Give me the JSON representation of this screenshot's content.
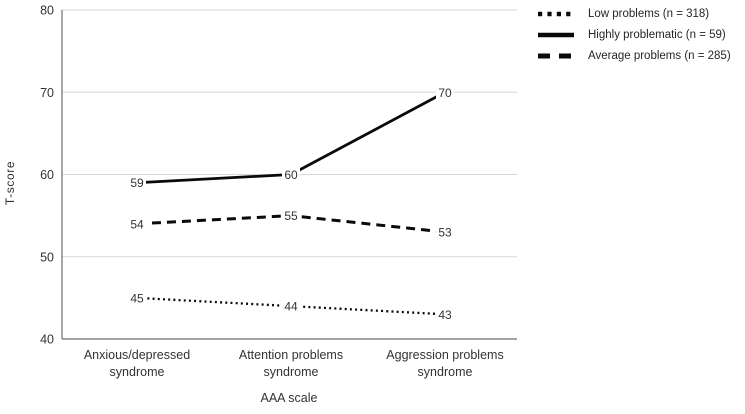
{
  "chart_data": {
    "type": "line",
    "title": "",
    "xlabel": "AAA scale",
    "ylabel": "T-score",
    "ylim": [
      40,
      80
    ],
    "yticks": [
      40,
      50,
      60,
      70,
      80
    ],
    "grid": "horizontal",
    "legend_position": "top-right-outside",
    "categories": [
      "Anxious/depressed\nsyndrome",
      "Attention problems\nsyndrome",
      "Aggression problems\nsyndrome"
    ],
    "series": [
      {
        "name": "Low problems (n = 318)",
        "style": "dotted",
        "values": [
          45,
          44,
          43
        ],
        "color": "#0a0a0a"
      },
      {
        "name": "Highly problematic (n = 59)",
        "style": "solid",
        "values": [
          59,
          60,
          70
        ],
        "color": "#0a0a0a"
      },
      {
        "name": "Average problems (n = 285)",
        "style": "dashed",
        "values": [
          54,
          55,
          53
        ],
        "color": "#0a0a0a"
      }
    ],
    "data_labels": true,
    "colors": {
      "grid": "#d9d9d9",
      "axis": "#6e6e6e",
      "text": "#333333"
    }
  }
}
